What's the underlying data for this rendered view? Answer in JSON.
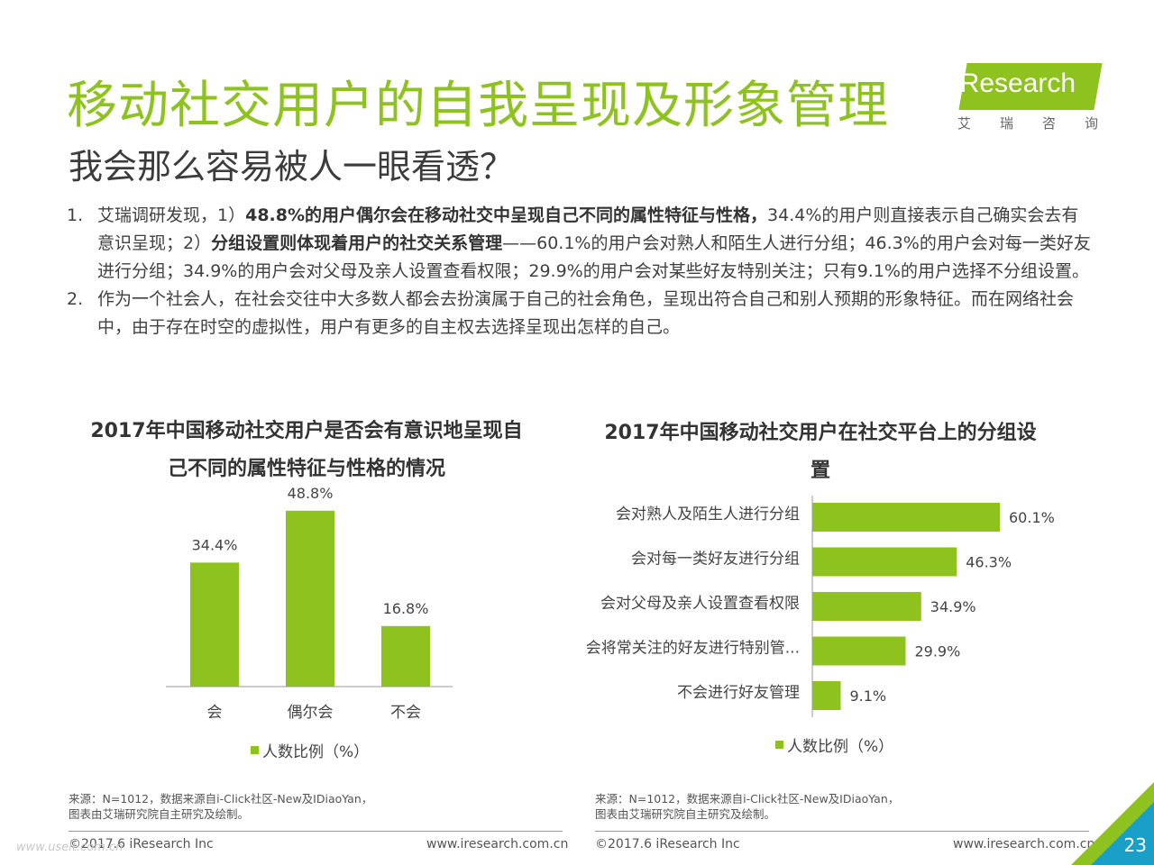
{
  "header": {
    "title": "移动社交用户的自我呈现及形象管理",
    "subtitle": "我会那么容易被人一眼看透？"
  },
  "logo": {
    "brand": "iResearch",
    "chinese": [
      "艾",
      "瑞",
      "咨",
      "询"
    ]
  },
  "points": [
    {
      "num": "1.",
      "parts": [
        {
          "text": "艾瑞调研发现，1）",
          "bold": false
        },
        {
          "text": "48.8%的用户偶尔会在移动社交中呈现自己不同的属性特征与性格，",
          "bold": true
        },
        {
          "text": "34.4%的用户则直接表示自己确实会去有意识呈现；2）",
          "bold": false
        },
        {
          "text": "分组设置则体现着用户的社交关系管理",
          "bold": true
        },
        {
          "text": "——60.1%的用户会对熟人和陌生人进行分组；46.3%的用户会对每一类好友进行分组；34.9%的用户会对父母及亲人设置查看权限；29.9%的用户会对某些好友特别关注；只有9.1%的用户选择不分组设置。",
          "bold": false
        }
      ]
    },
    {
      "num": "2.",
      "parts": [
        {
          "text": "作为一个社会人，在社会交往中大多数人都会去扮演属于自己的社会角色，呈现出符合自己和别人预期的形象特征。而在网络社会中，由于存在时空的虚拟性，用户有更多的自主权去选择呈现出怎样的自己。",
          "bold": false
        }
      ]
    }
  ],
  "chart_data": [
    {
      "type": "bar",
      "title": "2017年中国移动社交用户是否会有意识地呈现自己不同的属性特征与性格的情况",
      "categories": [
        "会",
        "偶尔会",
        "不会"
      ],
      "series": [
        {
          "name": "人数比例（%）",
          "values": [
            34.4,
            48.8,
            16.8
          ]
        }
      ],
      "value_labels": [
        "34.4%",
        "48.8%",
        "16.8%"
      ],
      "ylim": [
        0,
        50
      ],
      "legend": "bottom",
      "color": "#8dc21f"
    },
    {
      "type": "bar",
      "orientation": "horizontal",
      "title": "2017年中国移动社交用户在社交平台上的分组设置",
      "categories": [
        "会对熟人及陌生人进行分组",
        "会对每一类好友进行分组",
        "会对父母及亲人设置查看权限",
        "会将常关注的好友进行特别管...",
        "不会进行好友管理"
      ],
      "series": [
        {
          "name": "人数比例（%）",
          "values": [
            60.1,
            46.3,
            34.9,
            29.9,
            9.1
          ]
        }
      ],
      "value_labels": [
        "60.1%",
        "46.3%",
        "34.9%",
        "29.9%",
        "9.1%"
      ],
      "xlim": [
        0,
        60.1
      ],
      "legend": "bottom",
      "color": "#8dc21f"
    }
  ],
  "legend": {
    "label": "人数比例（%）"
  },
  "source": {
    "line1": "来源：N=1012，数据来源自i-Click社区-New及IDiaoYan，",
    "line2": "图表由艾瑞研究院自主研究及绘制。"
  },
  "footer": {
    "copyright": "©2017.6 iResearch Inc",
    "website": "www.iresearch.com.cn",
    "page": "23"
  },
  "watermark": "www.useit.com.cn"
}
